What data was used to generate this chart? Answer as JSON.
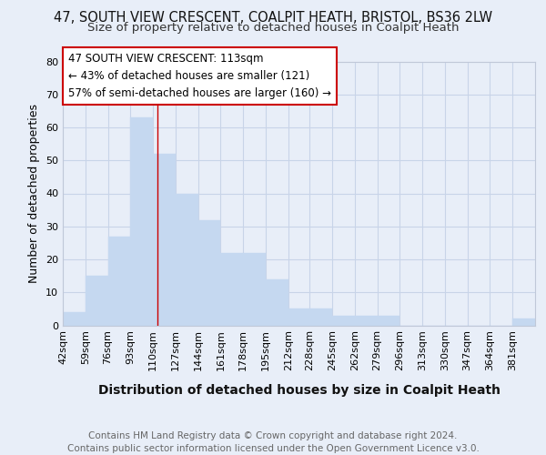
{
  "title1": "47, SOUTH VIEW CRESCENT, COALPIT HEATH, BRISTOL, BS36 2LW",
  "title2": "Size of property relative to detached houses in Coalpit Heath",
  "xlabel": "Distribution of detached houses by size in Coalpit Heath",
  "ylabel": "Number of detached properties",
  "bin_labels": [
    "42sqm",
    "59sqm",
    "76sqm",
    "93sqm",
    "110sqm",
    "127sqm",
    "144sqm",
    "161sqm",
    "178sqm",
    "195sqm",
    "212sqm",
    "228sqm",
    "245sqm",
    "262sqm",
    "279sqm",
    "296sqm",
    "313sqm",
    "330sqm",
    "347sqm",
    "364sqm",
    "381sqm"
  ],
  "bin_edges": [
    42,
    59,
    76,
    93,
    110,
    127,
    144,
    161,
    178,
    195,
    212,
    228,
    245,
    262,
    279,
    296,
    313,
    330,
    347,
    364,
    381,
    398
  ],
  "values": [
    4,
    15,
    27,
    63,
    52,
    40,
    32,
    22,
    22,
    14,
    5,
    5,
    3,
    3,
    3,
    0,
    0,
    0,
    0,
    0,
    2
  ],
  "bar_color": "#c5d8f0",
  "bar_edge_color": "#c5d8f0",
  "grid_color": "#c8d4e8",
  "bg_color": "#e8eef8",
  "plot_bg_color": "#e8eef8",
  "red_line_x": 113,
  "annotation_line1": "47 SOUTH VIEW CRESCENT: 113sqm",
  "annotation_line2": "← 43% of detached houses are smaller (121)",
  "annotation_line3": "57% of semi-detached houses are larger (160) →",
  "annotation_box_color": "#ffffff",
  "annotation_box_edge_color": "#cc0000",
  "ylim": [
    0,
    80
  ],
  "yticks": [
    0,
    10,
    20,
    30,
    40,
    50,
    60,
    70,
    80
  ],
  "footer": "Contains HM Land Registry data © Crown copyright and database right 2024.\nContains public sector information licensed under the Open Government Licence v3.0.",
  "title1_fontsize": 10.5,
  "title2_fontsize": 9.5,
  "xlabel_fontsize": 10,
  "ylabel_fontsize": 9,
  "annotation_fontsize": 8.5,
  "footer_fontsize": 7.5,
  "tick_fontsize": 8
}
